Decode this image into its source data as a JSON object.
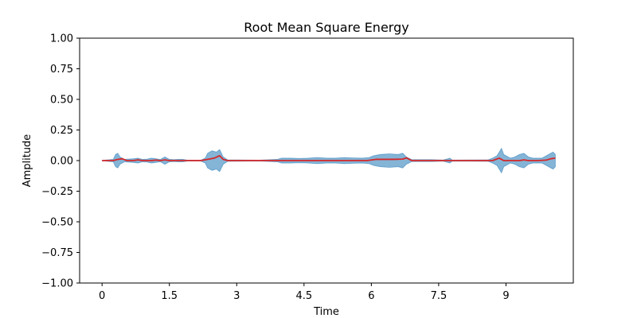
{
  "chart_data": {
    "type": "area",
    "title": "Root Mean Square Energy",
    "xlabel": "Time",
    "ylabel": "Amplitude",
    "xlim": [
      -0.5,
      10.5
    ],
    "ylim": [
      -1.0,
      1.0
    ],
    "x_ticks": [
      "0",
      "1.5",
      "3",
      "4.5",
      "6",
      "7.5",
      "9"
    ],
    "x_tick_values": [
      0,
      1.5,
      3,
      4.5,
      6,
      7.5,
      9
    ],
    "y_ticks": [
      "1.00",
      "0.75",
      "0.50",
      "0.25",
      "0.00",
      "−0.25",
      "−0.50",
      "−0.75",
      "−1.00"
    ],
    "y_tick_values": [
      1.0,
      0.75,
      0.5,
      0.25,
      0.0,
      -0.25,
      -0.5,
      -0.75,
      -1.0
    ],
    "grid": false,
    "series": [
      {
        "kind": "waveform-envelope",
        "color": "#1f77b4",
        "opacity": 0.55,
        "points": [
          [
            0.0,
            0.002
          ],
          [
            0.25,
            0.01
          ],
          [
            0.3,
            0.05
          ],
          [
            0.35,
            0.06
          ],
          [
            0.4,
            0.03
          ],
          [
            0.5,
            0.01
          ],
          [
            0.7,
            0.015
          ],
          [
            0.8,
            0.02
          ],
          [
            0.9,
            0.01
          ],
          [
            1.0,
            0.012
          ],
          [
            1.1,
            0.02
          ],
          [
            1.2,
            0.015
          ],
          [
            1.3,
            0.01
          ],
          [
            1.4,
            0.03
          ],
          [
            1.5,
            0.01
          ],
          [
            1.6,
            0.008
          ],
          [
            1.7,
            0.01
          ],
          [
            1.8,
            0.01
          ],
          [
            1.9,
            0.004
          ],
          [
            2.2,
            0.004
          ],
          [
            2.3,
            0.02
          ],
          [
            2.35,
            0.06
          ],
          [
            2.45,
            0.08
          ],
          [
            2.55,
            0.07
          ],
          [
            2.62,
            0.09
          ],
          [
            2.7,
            0.03
          ],
          [
            2.8,
            0.006
          ],
          [
            3.5,
            0.004
          ],
          [
            3.9,
            0.01
          ],
          [
            4.0,
            0.02
          ],
          [
            4.2,
            0.02
          ],
          [
            4.4,
            0.018
          ],
          [
            4.6,
            0.02
          ],
          [
            4.8,
            0.025
          ],
          [
            5.0,
            0.02
          ],
          [
            5.2,
            0.02
          ],
          [
            5.4,
            0.025
          ],
          [
            5.6,
            0.022
          ],
          [
            5.8,
            0.02
          ],
          [
            5.95,
            0.025
          ],
          [
            6.05,
            0.04
          ],
          [
            6.2,
            0.05
          ],
          [
            6.4,
            0.055
          ],
          [
            6.6,
            0.05
          ],
          [
            6.7,
            0.06
          ],
          [
            6.78,
            0.03
          ],
          [
            6.9,
            0.008
          ],
          [
            7.2,
            0.008
          ],
          [
            7.35,
            0.008
          ],
          [
            7.6,
            0.005
          ],
          [
            7.75,
            0.02
          ],
          [
            7.8,
            0.005
          ],
          [
            8.6,
            0.006
          ],
          [
            8.7,
            0.02
          ],
          [
            8.8,
            0.04
          ],
          [
            8.9,
            0.1
          ],
          [
            8.95,
            0.05
          ],
          [
            9.1,
            0.02
          ],
          [
            9.2,
            0.03
          ],
          [
            9.3,
            0.05
          ],
          [
            9.4,
            0.06
          ],
          [
            9.5,
            0.03
          ],
          [
            9.6,
            0.02
          ],
          [
            9.8,
            0.02
          ],
          [
            9.9,
            0.04
          ],
          [
            10.0,
            0.06
          ],
          [
            10.05,
            0.07
          ],
          [
            10.1,
            0.05
          ]
        ]
      },
      {
        "kind": "rms-line",
        "color": "#d62728",
        "points": [
          [
            0.0,
            0.0
          ],
          [
            0.25,
            0.0
          ],
          [
            0.35,
            0.01
          ],
          [
            0.45,
            0.015
          ],
          [
            0.55,
            0.0
          ],
          [
            0.7,
            0.0
          ],
          [
            0.8,
            0.006
          ],
          [
            0.9,
            0.0
          ],
          [
            1.1,
            0.0
          ],
          [
            1.2,
            0.004
          ],
          [
            1.3,
            0.0
          ],
          [
            1.4,
            0.006
          ],
          [
            1.5,
            0.0
          ],
          [
            2.2,
            0.0
          ],
          [
            2.35,
            0.01
          ],
          [
            2.5,
            0.02
          ],
          [
            2.62,
            0.04
          ],
          [
            2.7,
            0.01
          ],
          [
            2.8,
            0.0
          ],
          [
            5.9,
            0.0
          ],
          [
            6.1,
            0.01
          ],
          [
            6.3,
            0.01
          ],
          [
            6.5,
            0.01
          ],
          [
            6.7,
            0.012
          ],
          [
            6.78,
            0.022
          ],
          [
            6.9,
            0.0
          ],
          [
            8.7,
            0.0
          ],
          [
            8.85,
            0.02
          ],
          [
            8.95,
            0.0
          ],
          [
            9.3,
            0.0
          ],
          [
            9.4,
            0.006
          ],
          [
            9.5,
            0.0
          ],
          [
            9.7,
            0.0
          ],
          [
            9.9,
            0.004
          ],
          [
            10.0,
            0.015
          ],
          [
            10.1,
            0.02
          ]
        ]
      }
    ]
  }
}
